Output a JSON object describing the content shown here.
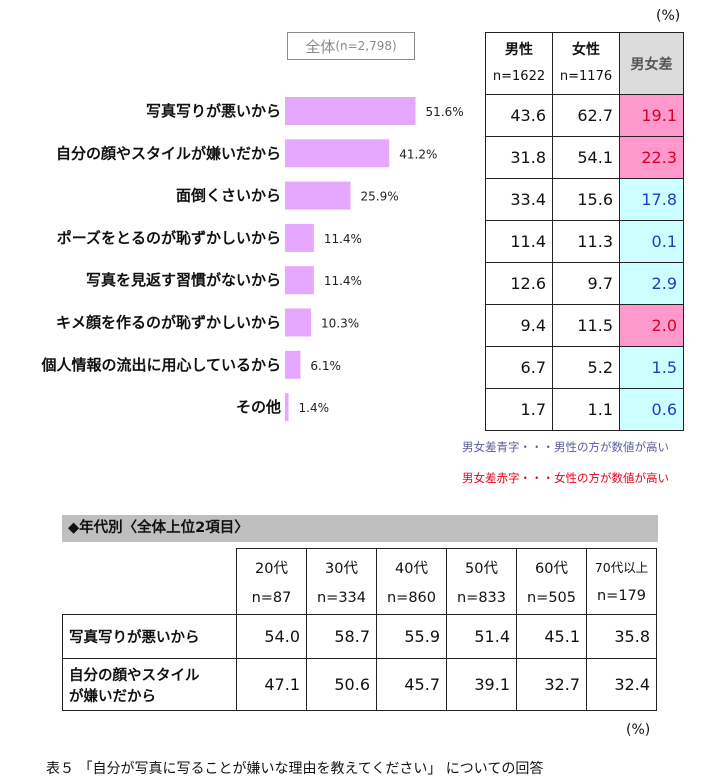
{
  "unit_top": "(%)",
  "overall_badge": {
    "label": "全体",
    "n": "(n=2,798)"
  },
  "chart_data": {
    "type": "bar",
    "orientation": "horizontal",
    "categories": [
      "写真写りが悪いから",
      "自分の顔やスタイルが嫌いだから",
      "面倒くさいから",
      "ポーズをとるのが恥ずかしいから",
      "写真を見返す習慣がないから",
      "キメ顔を作るのが恥ずかしいから",
      "個人情報の流出に用心しているから",
      "その他"
    ],
    "values": [
      51.6,
      41.2,
      25.9,
      11.4,
      11.4,
      10.3,
      6.1,
      1.4
    ],
    "value_labels": [
      "51.6%",
      "41.2%",
      "25.9%",
      "11.4%",
      "11.4%",
      "10.3%",
      "6.1%",
      "1.4%"
    ],
    "bar_color": "#e6a8ff",
    "xlim": [
      0,
      100
    ],
    "grid": false
  },
  "gender_table": {
    "headers": [
      {
        "label": "男性",
        "n": "n=1622"
      },
      {
        "label": "女性",
        "n": "n=1176"
      }
    ],
    "diff_header": "男女差",
    "rows": [
      {
        "male": "43.6",
        "female": "62.7",
        "diff": "19.1",
        "higher": "female"
      },
      {
        "male": "31.8",
        "female": "54.1",
        "diff": "22.3",
        "higher": "female"
      },
      {
        "male": "33.4",
        "female": "15.6",
        "diff": "17.8",
        "higher": "male"
      },
      {
        "male": "11.4",
        "female": "11.3",
        "diff": "0.1",
        "higher": "male"
      },
      {
        "male": "12.6",
        "female": "9.7",
        "diff": "2.9",
        "higher": "male"
      },
      {
        "male": "9.4",
        "female": "11.5",
        "diff": "2.0",
        "higher": "female"
      },
      {
        "male": "6.7",
        "female": "5.2",
        "diff": "1.5",
        "higher": "male"
      },
      {
        "male": "1.7",
        "female": "1.1",
        "diff": "0.6",
        "higher": "male"
      }
    ],
    "colors": {
      "female_bg": "#ff99cc",
      "female_text": "#d9002b",
      "male_bg": "#ccffff",
      "male_text": "#1f3fbf"
    }
  },
  "notes": {
    "blue": "男女差青字・・・男性の方が数値が高い",
    "red": "男女差赤字・・・女性の方が数値が高い"
  },
  "age_section": {
    "title": "◆年代別〈全体上位2項目〉",
    "headers": [
      {
        "label": "20代",
        "n": "n=87"
      },
      {
        "label": "30代",
        "n": "n=334"
      },
      {
        "label": "40代",
        "n": "n=860"
      },
      {
        "label": "50代",
        "n": "n=833"
      },
      {
        "label": "60代",
        "n": "n=505"
      },
      {
        "label": "70代以上",
        "n": "n=179"
      }
    ],
    "rows": [
      {
        "label": "写真写りが悪いから",
        "values": [
          "54.0",
          "58.7",
          "55.9",
          "51.4",
          "45.1",
          "35.8"
        ]
      },
      {
        "label_line1": "自分の顔やスタイル",
        "label_line2": "が嫌いだから",
        "values": [
          "47.1",
          "50.6",
          "45.7",
          "39.1",
          "32.7",
          "32.4"
        ]
      }
    ],
    "unit": "(%)"
  },
  "caption": "表５ 「自分が写真に写ることが嫌いな理由を教えてください」 についての回答"
}
